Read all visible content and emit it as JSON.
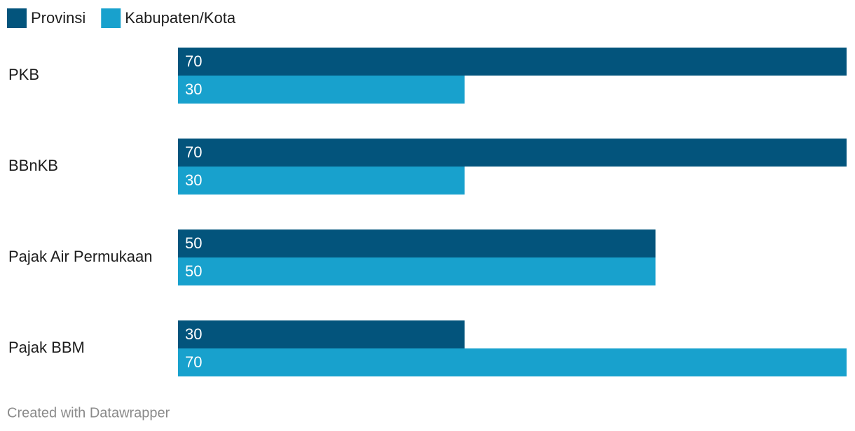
{
  "chart_data": {
    "type": "bar",
    "orientation": "horizontal",
    "categories": [
      "PKB",
      "BBnKB",
      "Pajak Air Permukaan",
      "Pajak BBM"
    ],
    "series": [
      {
        "name": "Provinsi",
        "color": "#03547c",
        "values": [
          70,
          70,
          50,
          30
        ]
      },
      {
        "name": "Kabupaten/Kota",
        "color": "#18a1cd",
        "values": [
          30,
          30,
          50,
          70
        ]
      }
    ],
    "credit": "Created with Datawrapper"
  }
}
